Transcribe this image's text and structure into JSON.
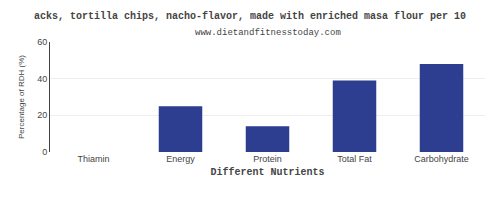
{
  "chart_data": {
    "type": "bar",
    "title": "acks, tortilla chips, nacho-flavor, made with enriched masa flour per 10",
    "subtitle": "www.dietandfitnesstoday.com",
    "xlabel": "Different Nutrients",
    "ylabel": "Percentage of RDH (%)",
    "categories": [
      "Thiamin",
      "Energy",
      "Protein",
      "Total Fat",
      "Carbohydrate"
    ],
    "values": [
      0,
      25,
      14,
      39,
      48
    ],
    "color": "#2d3d8f",
    "ylim": [
      0,
      60
    ],
    "yticks": [
      0,
      20,
      40,
      60
    ],
    "grid": true
  }
}
